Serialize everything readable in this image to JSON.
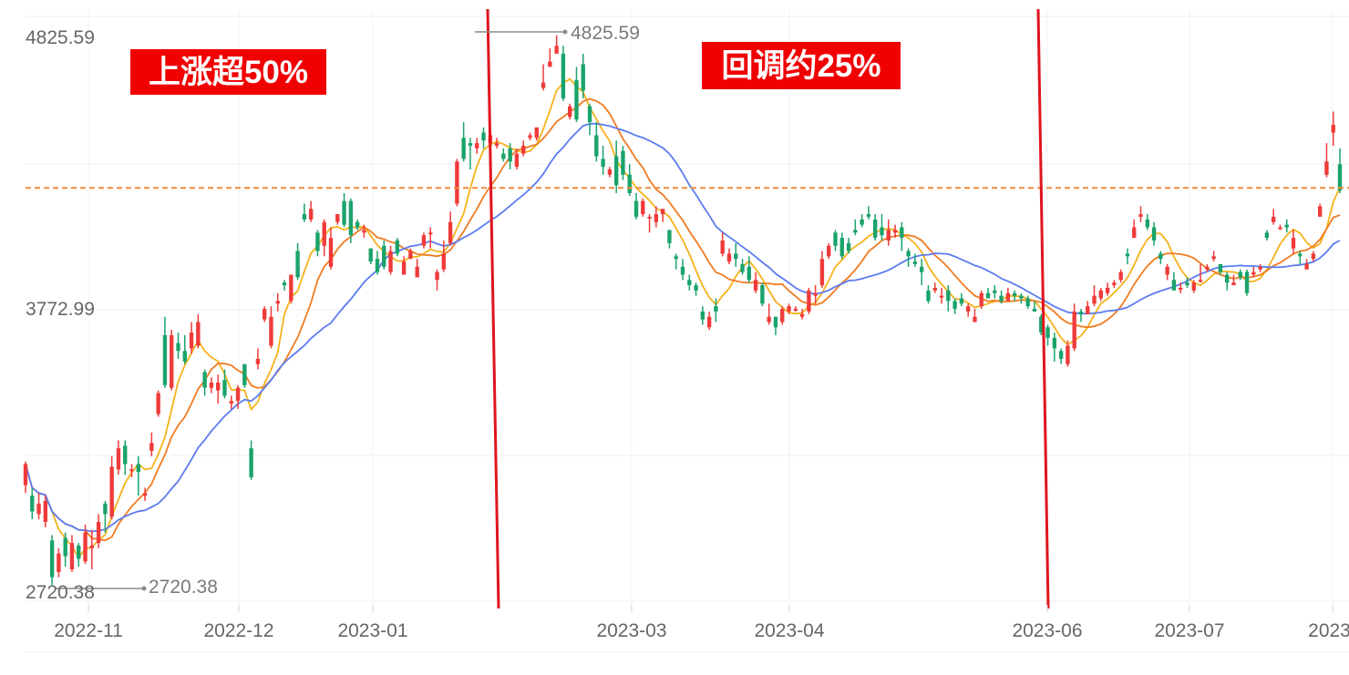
{
  "chart_data": {
    "type": "candlestick",
    "title": "",
    "xlabel": "",
    "ylabel": "",
    "ylim": [
      2720.38,
      4825.59
    ],
    "y_tick_labels": [
      "4825.59",
      "3772.99",
      "2720.38"
    ],
    "x_tick_labels": [
      "2022-11",
      "2022-12",
      "2023-01",
      "2023-03",
      "2023-04",
      "2023-06",
      "2023-07",
      "2023-"
    ],
    "grid": true,
    "colors": {
      "up": "#f03a3a",
      "down": "#1aa36b",
      "ma5": "#f5b21b",
      "ma10": "#f07c22",
      "ma20": "#5b7cf0",
      "dashed": "#f08a3c",
      "divider": "#e0141e",
      "annotation_bg": "#f00000"
    },
    "reference_line": {
      "value": 4250,
      "style": "dashed"
    },
    "max_marker": {
      "label": "4825.59",
      "value": 4825.59
    },
    "min_marker": {
      "label": "2720.38",
      "value": 2720.38
    },
    "annotations": [
      {
        "text": "上涨超50%"
      },
      {
        "text": "回调约25%"
      }
    ],
    "candles": [
      [
        3120,
        3200,
        3090,
        3210
      ],
      [
        3080,
        3020,
        2990,
        3110
      ],
      [
        3010,
        3050,
        2990,
        3090
      ],
      [
        2980,
        3060,
        2960,
        3080
      ],
      [
        2910,
        2770,
        2740,
        2930
      ],
      [
        2790,
        2860,
        2770,
        2880
      ],
      [
        2920,
        2850,
        2810,
        2940
      ],
      [
        2800,
        2900,
        2790,
        2930
      ],
      [
        2890,
        2840,
        2810,
        2900
      ],
      [
        2830,
        2940,
        2820,
        2970
      ],
      [
        2880,
        2890,
        2800,
        2950
      ],
      [
        2900,
        2980,
        2880,
        3010
      ],
      [
        3050,
        3010,
        2940,
        3060
      ],
      [
        3000,
        3190,
        2990,
        3230
      ],
      [
        3180,
        3260,
        3160,
        3290
      ],
      [
        3270,
        3200,
        3160,
        3290
      ],
      [
        3180,
        3180,
        3150,
        3200
      ],
      [
        3200,
        3170,
        3080,
        3230
      ],
      [
        3080,
        3090,
        3060,
        3110
      ],
      [
        3250,
        3280,
        3230,
        3320
      ],
      [
        3390,
        3470,
        3380,
        3480
      ],
      [
        3690,
        3500,
        3490,
        3760
      ],
      [
        3490,
        3690,
        3480,
        3710
      ],
      [
        3660,
        3630,
        3600,
        3700
      ],
      [
        3630,
        3590,
        3580,
        3690
      ],
      [
        3640,
        3700,
        3620,
        3740
      ],
      [
        3650,
        3740,
        3640,
        3770
      ],
      [
        3550,
        3490,
        3460,
        3560
      ],
      [
        3490,
        3510,
        3470,
        3530
      ],
      [
        3480,
        3510,
        3430,
        3540
      ],
      [
        3520,
        3460,
        3450,
        3560
      ],
      [
        3430,
        3440,
        3410,
        3460
      ],
      [
        3440,
        3490,
        3410,
        3500
      ],
      [
        3580,
        3500,
        3490,
        3580
      ],
      [
        3260,
        3150,
        3140,
        3290
      ],
      [
        3580,
        3600,
        3560,
        3640
      ],
      [
        3750,
        3790,
        3740,
        3800
      ],
      [
        3650,
        3760,
        3640,
        3800
      ],
      [
        3810,
        3820,
        3780,
        3850
      ],
      [
        3890,
        3880,
        3860,
        3900
      ],
      [
        3820,
        3920,
        3810,
        3920
      ],
      [
        4010,
        3910,
        3900,
        4040
      ],
      [
        4150,
        4130,
        4120,
        4190
      ],
      [
        4130,
        4170,
        4120,
        4200
      ],
      [
        4080,
        4010,
        3990,
        4090
      ],
      [
        4030,
        4120,
        3990,
        4130
      ],
      [
        3950,
        4060,
        3940,
        4100
      ],
      [
        4120,
        4150,
        4110,
        4150
      ],
      [
        4200,
        4110,
        4100,
        4230
      ],
      [
        4200,
        4070,
        4040,
        4210
      ],
      [
        4120,
        4100,
        4090,
        4130
      ],
      [
        4080,
        4090,
        4060,
        4110
      ],
      [
        4020,
        3970,
        3960,
        4020
      ],
      [
        3980,
        3930,
        3920,
        4010
      ],
      [
        4030,
        3950,
        3940,
        4050
      ],
      [
        3930,
        4010,
        3920,
        4030
      ],
      [
        4050,
        4000,
        3990,
        4060
      ],
      [
        3920,
        3970,
        3920,
        3990
      ],
      [
        3980,
        4010,
        3980,
        4020
      ],
      [
        3910,
        3950,
        3910,
        3980
      ],
      [
        4030,
        4070,
        4020,
        4080
      ],
      [
        4080,
        4080,
        4020,
        4100
      ],
      [
        3900,
        3930,
        3860,
        3940
      ],
      [
        3940,
        4000,
        3930,
        4050
      ],
      [
        4040,
        4120,
        4030,
        4160
      ],
      [
        4190,
        4350,
        4180,
        4360
      ],
      [
        4440,
        4360,
        4350,
        4500
      ],
      [
        4420,
        4410,
        4320,
        4440
      ],
      [
        4400,
        4420,
        4380,
        4440
      ],
      [
        4460,
        4430,
        4400,
        4480
      ],
      [
        4420,
        4450,
        4400,
        4470
      ],
      [
        4410,
        4420,
        4400,
        4440
      ],
      [
        4380,
        4360,
        4350,
        4400
      ],
      [
        4400,
        4350,
        4320,
        4420
      ],
      [
        4330,
        4380,
        4320,
        4400
      ],
      [
        4380,
        4410,
        4370,
        4430
      ],
      [
        4440,
        4450,
        4430,
        4460
      ],
      [
        4440,
        4480,
        4430,
        4470
      ],
      [
        4630,
        4650,
        4620,
        4720
      ],
      [
        4710,
        4730,
        4720,
        4780
      ],
      [
        4760,
        4790,
        4780,
        4830
      ],
      [
        4760,
        4590,
        4580,
        4790
      ],
      [
        4520,
        4560,
        4510,
        4570
      ],
      [
        4660,
        4510,
        4500,
        4710
      ],
      [
        4720,
        4620,
        4590,
        4760
      ],
      [
        4560,
        4500,
        4450,
        4570
      ],
      [
        4450,
        4370,
        4350,
        4500
      ],
      [
        4360,
        4330,
        4300,
        4410
      ],
      [
        4300,
        4320,
        4290,
        4330
      ],
      [
        4370,
        4260,
        4230,
        4430
      ],
      [
        4390,
        4300,
        4280,
        4410
      ],
      [
        4300,
        4230,
        4220,
        4340
      ],
      [
        4200,
        4140,
        4130,
        4230
      ],
      [
        4150,
        4200,
        4140,
        4210
      ],
      [
        4140,
        4140,
        4080,
        4150
      ],
      [
        4120,
        4150,
        4100,
        4180
      ],
      [
        4150,
        4170,
        4120,
        4170
      ],
      [
        4090,
        4040,
        4020,
        4090
      ],
      [
        3990,
        3980,
        3940,
        4000
      ],
      [
        3950,
        3920,
        3900,
        3980
      ],
      [
        3900,
        3880,
        3860,
        3920
      ],
      [
        3880,
        3860,
        3840,
        3890
      ],
      [
        3780,
        3750,
        3730,
        3800
      ],
      [
        3720,
        3760,
        3710,
        3780
      ],
      [
        3800,
        3780,
        3740,
        3830
      ],
      [
        4000,
        4050,
        3990,
        4080
      ],
      [
        3970,
        4000,
        3960,
        4020
      ],
      [
        4000,
        3980,
        3950,
        4040
      ],
      [
        3960,
        3930,
        3920,
        3980
      ],
      [
        3950,
        3900,
        3890,
        3990
      ],
      [
        3860,
        3900,
        3850,
        3930
      ],
      [
        3880,
        3810,
        3800,
        3890
      ],
      [
        3740,
        3760,
        3730,
        3810
      ],
      [
        3760,
        3720,
        3690,
        3760
      ],
      [
        3740,
        3790,
        3730,
        3800
      ],
      [
        3780,
        3800,
        3770,
        3810
      ],
      [
        3790,
        3790,
        3780,
        3800
      ],
      [
        3760,
        3770,
        3750,
        3790
      ],
      [
        3780,
        3860,
        3770,
        3870
      ],
      [
        3840,
        3850,
        3810,
        3880
      ],
      [
        3880,
        3980,
        3870,
        4010
      ],
      [
        3990,
        4030,
        3980,
        4040
      ],
      [
        4080,
        4030,
        4010,
        4090
      ],
      [
        4060,
        3990,
        3980,
        4080
      ],
      [
        4040,
        4010,
        4000,
        4060
      ],
      [
        4090,
        4080,
        4070,
        4130
      ],
      [
        4130,
        4110,
        4100,
        4150
      ],
      [
        4150,
        4140,
        4130,
        4180
      ],
      [
        4130,
        4060,
        4050,
        4150
      ],
      [
        4100,
        4070,
        4050,
        4150
      ],
      [
        4050,
        4090,
        4030,
        4130
      ],
      [
        4080,
        4090,
        4060,
        4110
      ],
      [
        4100,
        4060,
        4010,
        4120
      ],
      [
        4010,
        3990,
        3950,
        4020
      ],
      [
        3970,
        3960,
        3950,
        4000
      ],
      [
        3950,
        3930,
        3880,
        3980
      ],
      [
        3860,
        3820,
        3810,
        3880
      ],
      [
        3860,
        3870,
        3850,
        3890
      ],
      [
        3840,
        3840,
        3810,
        3870
      ],
      [
        3860,
        3820,
        3780,
        3880
      ],
      [
        3820,
        3790,
        3770,
        3830
      ],
      [
        3830,
        3810,
        3800,
        3850
      ],
      [
        3780,
        3800,
        3760,
        3810
      ],
      [
        3740,
        3760,
        3740,
        3790
      ],
      [
        3800,
        3850,
        3790,
        3860
      ],
      [
        3850,
        3830,
        3830,
        3870
      ],
      [
        3860,
        3850,
        3830,
        3880
      ],
      [
        3840,
        3820,
        3810,
        3860
      ],
      [
        3820,
        3850,
        3820,
        3870
      ],
      [
        3850,
        3840,
        3820,
        3860
      ],
      [
        3840,
        3830,
        3810,
        3850
      ],
      [
        3830,
        3800,
        3790,
        3840
      ],
      [
        3790,
        3780,
        3780,
        3820
      ],
      [
        3760,
        3700,
        3690,
        3770
      ],
      [
        3720,
        3680,
        3650,
        3730
      ],
      [
        3680,
        3640,
        3590,
        3700
      ],
      [
        3630,
        3600,
        3580,
        3640
      ],
      [
        3580,
        3650,
        3570,
        3670
      ],
      [
        3640,
        3780,
        3630,
        3810
      ],
      [
        3780,
        3770,
        3740,
        3790
      ],
      [
        3770,
        3800,
        3770,
        3820
      ],
      [
        3810,
        3840,
        3800,
        3880
      ],
      [
        3830,
        3860,
        3820,
        3870
      ],
      [
        3850,
        3870,
        3840,
        3890
      ],
      [
        3880,
        3890,
        3870,
        3900
      ],
      [
        3900,
        3930,
        3890,
        3940
      ],
      [
        4000,
        3990,
        3960,
        4020
      ],
      [
        4060,
        4100,
        4060,
        4130
      ],
      [
        4140,
        4150,
        4120,
        4180
      ],
      [
        4130,
        4100,
        4090,
        4150
      ],
      [
        4100,
        4050,
        4030,
        4120
      ],
      [
        4000,
        3980,
        3960,
        4010
      ],
      [
        3920,
        3950,
        3900,
        3960
      ],
      [
        3900,
        3860,
        3860,
        3930
      ],
      [
        3870,
        3870,
        3850,
        3890
      ],
      [
        3890,
        3880,
        3870,
        3910
      ],
      [
        3860,
        3890,
        3850,
        3900
      ],
      [
        3900,
        3900,
        3890,
        3960
      ],
      [
        3940,
        3950,
        3930,
        3960
      ],
      [
        3980,
        3990,
        3970,
        4010
      ],
      [
        3960,
        3930,
        3920,
        3960
      ],
      [
        3920,
        3890,
        3860,
        3930
      ],
      [
        3880,
        3890,
        3880,
        3920
      ],
      [
        3930,
        3910,
        3900,
        3940
      ],
      [
        3930,
        3850,
        3840,
        3940
      ],
      [
        3920,
        3930,
        3910,
        3950
      ],
      [
        3940,
        3950,
        3930,
        3960
      ],
      [
        4080,
        4060,
        4050,
        4090
      ],
      [
        4120,
        4140,
        4110,
        4170
      ],
      [
        4100,
        4100,
        4090,
        4110
      ],
      [
        4110,
        4100,
        4080,
        4130
      ],
      [
        4020,
        4060,
        4000,
        4090
      ],
      [
        4000,
        3990,
        3960,
        4010
      ],
      [
        3940,
        3960,
        3940,
        3980
      ],
      [
        3980,
        4000,
        3970,
        4010
      ],
      [
        4140,
        4180,
        4140,
        4190
      ],
      [
        4300,
        4350,
        4290,
        4420
      ],
      [
        4460,
        4490,
        4410,
        4540
      ],
      [
        4340,
        4240,
        4230,
        4400
      ]
    ]
  }
}
